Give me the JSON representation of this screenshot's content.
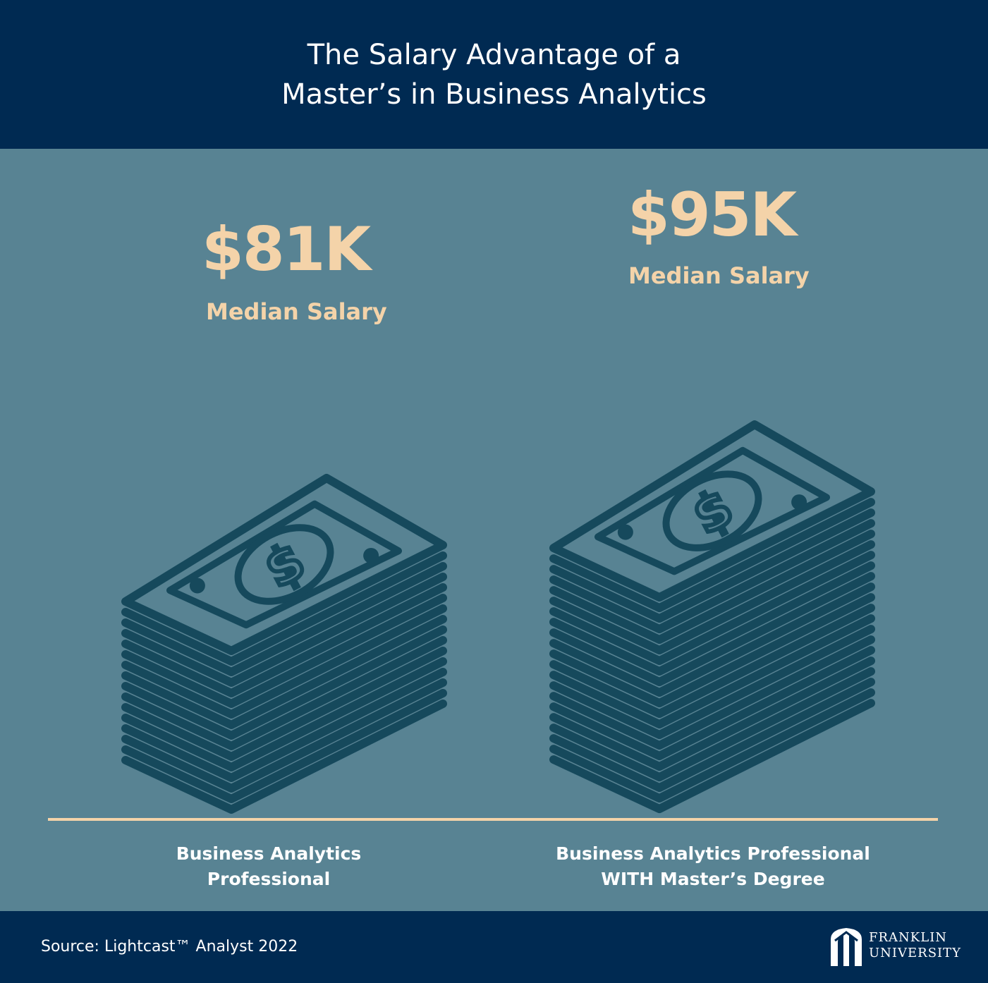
{
  "header": {
    "title_line1": "The Salary Advantage of a",
    "title_line2": "Master’s in Business Analytics"
  },
  "chart_data": {
    "type": "bar",
    "categories": [
      "Business Analytics Professional",
      "Business Analytics Professional WITH Master’s Degree"
    ],
    "values": [
      81,
      95
    ],
    "value_labels": [
      "$81K",
      "$95K"
    ],
    "value_sublabel": "Median Salary",
    "category_label_lines": [
      [
        "Business Analytics",
        "Professional"
      ],
      [
        "Business Analytics Professional",
        "WITH Master’s Degree"
      ]
    ],
    "unit": "$K",
    "bar_style": "stack-of-dollar-bills"
  },
  "colors": {
    "header_bg": "#002a52",
    "panel_bg": "#588393",
    "accent": "#f4d3a9",
    "bill_stroke": "#16495c"
  },
  "footer": {
    "source": "Source: Lightcast™ Analyst 2022",
    "logo_line1": "FRANKLIN",
    "logo_line2": "UNIVERSITY",
    "logo_icon": "franklin-arch-icon"
  }
}
